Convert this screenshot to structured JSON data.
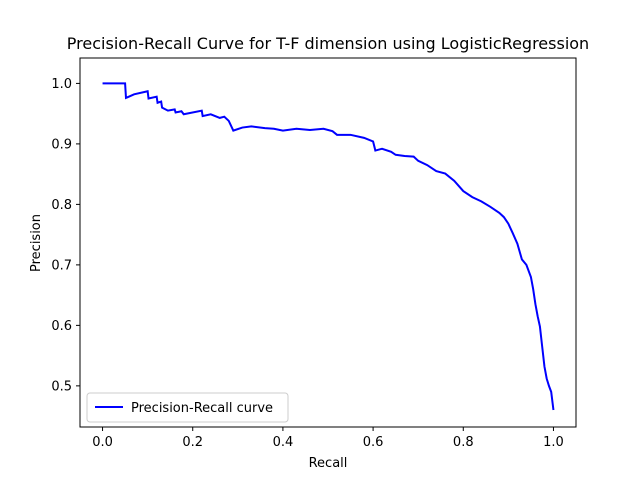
{
  "chart_data": {
    "type": "line",
    "title": "Precision-Recall Curve for T-F dimension using LogisticRegression",
    "xlabel": "Recall",
    "ylabel": "Precision",
    "xlim": [
      -0.05,
      1.05
    ],
    "ylim": [
      0.432,
      1.042
    ],
    "xticks": [
      0.0,
      0.2,
      0.4,
      0.6,
      0.8,
      1.0
    ],
    "xtick_labels": [
      "0.0",
      "0.2",
      "0.4",
      "0.6",
      "0.8",
      "1.0"
    ],
    "yticks": [
      0.5,
      0.6,
      0.7,
      0.8,
      0.9,
      1.0
    ],
    "ytick_labels": [
      "0.5",
      "0.6",
      "0.7",
      "0.8",
      "0.9",
      "1.0"
    ],
    "grid": false,
    "legend_position": "lower-left",
    "series": [
      {
        "name": "Precision-Recall curve",
        "color": "#0000ff",
        "points": [
          [
            0.0,
            1.0
          ],
          [
            0.05,
            1.0
          ],
          [
            0.052,
            0.976
          ],
          [
            0.07,
            0.982
          ],
          [
            0.1,
            0.987
          ],
          [
            0.102,
            0.975
          ],
          [
            0.12,
            0.978
          ],
          [
            0.122,
            0.968
          ],
          [
            0.13,
            0.97
          ],
          [
            0.132,
            0.96
          ],
          [
            0.145,
            0.955
          ],
          [
            0.16,
            0.957
          ],
          [
            0.162,
            0.952
          ],
          [
            0.175,
            0.954
          ],
          [
            0.18,
            0.949
          ],
          [
            0.22,
            0.955
          ],
          [
            0.222,
            0.946
          ],
          [
            0.24,
            0.949
          ],
          [
            0.26,
            0.943
          ],
          [
            0.27,
            0.945
          ],
          [
            0.28,
            0.938
          ],
          [
            0.29,
            0.922
          ],
          [
            0.31,
            0.927
          ],
          [
            0.33,
            0.929
          ],
          [
            0.36,
            0.926
          ],
          [
            0.38,
            0.925
          ],
          [
            0.4,
            0.922
          ],
          [
            0.43,
            0.925
          ],
          [
            0.46,
            0.923
          ],
          [
            0.49,
            0.925
          ],
          [
            0.51,
            0.921
          ],
          [
            0.52,
            0.915
          ],
          [
            0.55,
            0.915
          ],
          [
            0.58,
            0.91
          ],
          [
            0.6,
            0.904
          ],
          [
            0.605,
            0.889
          ],
          [
            0.62,
            0.892
          ],
          [
            0.64,
            0.887
          ],
          [
            0.65,
            0.882
          ],
          [
            0.67,
            0.88
          ],
          [
            0.69,
            0.879
          ],
          [
            0.7,
            0.872
          ],
          [
            0.72,
            0.865
          ],
          [
            0.74,
            0.855
          ],
          [
            0.76,
            0.851
          ],
          [
            0.78,
            0.839
          ],
          [
            0.8,
            0.822
          ],
          [
            0.82,
            0.812
          ],
          [
            0.84,
            0.805
          ],
          [
            0.86,
            0.796
          ],
          [
            0.88,
            0.786
          ],
          [
            0.89,
            0.779
          ],
          [
            0.9,
            0.768
          ],
          [
            0.91,
            0.752
          ],
          [
            0.92,
            0.735
          ],
          [
            0.93,
            0.709
          ],
          [
            0.94,
            0.7
          ],
          [
            0.95,
            0.68
          ],
          [
            0.955,
            0.66
          ],
          [
            0.96,
            0.635
          ],
          [
            0.965,
            0.615
          ],
          [
            0.97,
            0.598
          ],
          [
            0.975,
            0.565
          ],
          [
            0.98,
            0.532
          ],
          [
            0.985,
            0.512
          ],
          [
            0.99,
            0.5
          ],
          [
            0.995,
            0.49
          ],
          [
            1.0,
            0.46
          ]
        ]
      }
    ]
  }
}
